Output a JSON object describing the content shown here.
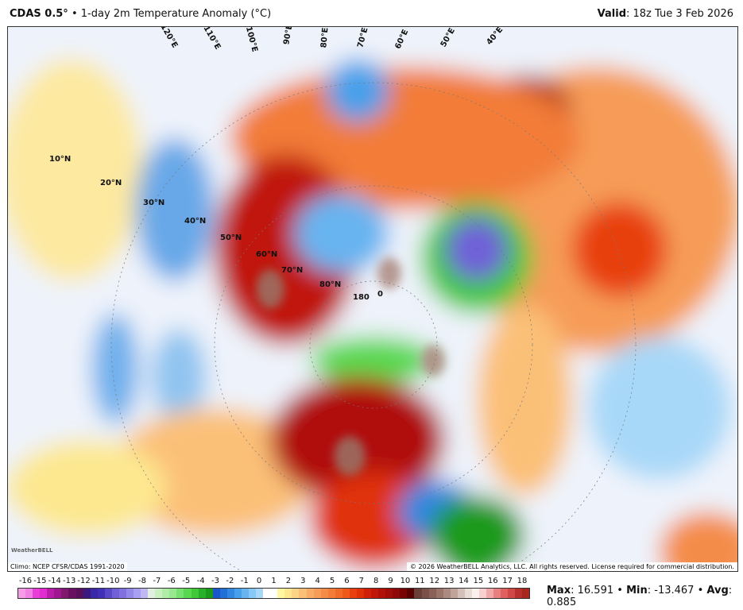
{
  "header": {
    "model": "CDAS 0.5°",
    "separator": "•",
    "product": "1-day 2m Temperature Anomaly (°C)",
    "valid_label": "Valid",
    "valid_value": "18z Tue 3 Feb 2026"
  },
  "map": {
    "lat_labels": [
      "10°N",
      "20°N",
      "30°N",
      "40°N",
      "50°N",
      "60°N",
      "70°N",
      "80°N"
    ],
    "lon_labels": [
      "120°E",
      "110°E",
      "100°E",
      "90°E",
      "80°E",
      "70°E",
      "60°E",
      "50°E",
      "40°E",
      "180",
      "0"
    ],
    "climo": "Climo: NCEP CFSR/CDAS 1991-2020",
    "copyright": "© 2026 WeatherBELL Analytics, LLC. All rights reserved. License required for commercial distribution.",
    "logo": "WeatherBELL"
  },
  "colorbar": {
    "ticks": [
      "-16",
      "-15",
      "-14",
      "-13",
      "-12",
      "-11",
      "-10",
      "-9",
      "-8",
      "-7",
      "-6",
      "-5",
      "-4",
      "-3",
      "-2",
      "-1",
      "0",
      "1",
      "2",
      "3",
      "4",
      "5",
      "6",
      "7",
      "8",
      "9",
      "10",
      "11",
      "12",
      "13",
      "14",
      "15",
      "16",
      "17",
      "18"
    ],
    "colors": [
      "#f49ce6",
      "#f080e2",
      "#ea3ed8",
      "#e02cd0",
      "#b81ca8",
      "#a01690",
      "#801870",
      "#6a1060",
      "#58105a",
      "#3a1a80",
      "#3a28a8",
      "#4030b8",
      "#5848c8",
      "#7060d8",
      "#8070e0",
      "#9488e8",
      "#a8a0f0",
      "#c0b8f4",
      "#e0f0e0",
      "#c8f0c0",
      "#b0eca8",
      "#98e890",
      "#78e070",
      "#58d850",
      "#40c838",
      "#28b028",
      "#1a9a1a",
      "#1858c8",
      "#2070d8",
      "#3088e0",
      "#48a0ea",
      "#68b4f0",
      "#88c8f4",
      "#a8d8f8",
      "#ffffff",
      "#ffffff",
      "#fff8a0",
      "#fde890",
      "#fcd488",
      "#fbc078",
      "#f8ac68",
      "#f69c58",
      "#f48c48",
      "#f27c38",
      "#f06a28",
      "#ee5818",
      "#e84010",
      "#e03008",
      "#d02008",
      "#c01808",
      "#b01008",
      "#a00c08",
      "#900808",
      "#780404",
      "#5a0202",
      "#684038",
      "#7a5048",
      "#8a6058",
      "#9a7468",
      "#ac8a80",
      "#c0a49a",
      "#d4c0b8",
      "#e8dcd6",
      "#faf0ee",
      "#f8d0d0",
      "#f0a8a8",
      "#e88080",
      "#e06060",
      "#d04848",
      "#b83030",
      "#a82820"
    ]
  },
  "stats": {
    "max_label": "Max",
    "max": "16.591",
    "min_label": "Min",
    "min": "-13.467",
    "avg_label": "Avg",
    "avg": "0.885",
    "sep": "•"
  }
}
